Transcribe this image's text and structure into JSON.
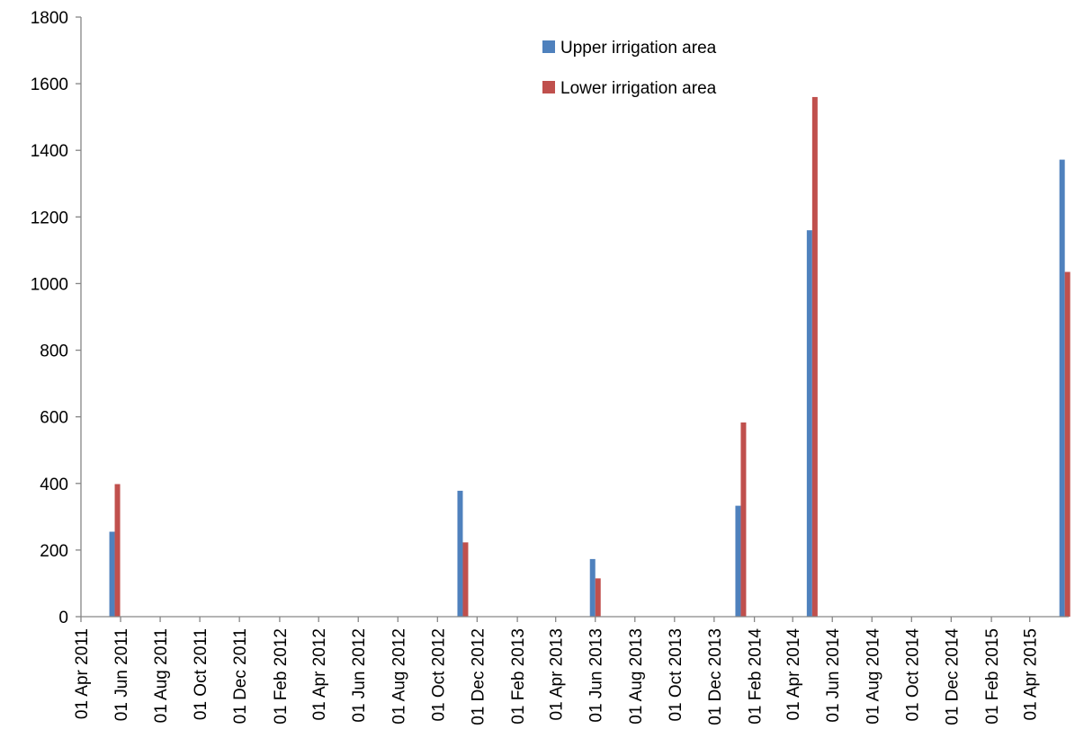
{
  "chart_data": {
    "type": "bar",
    "ylim": [
      0,
      1800
    ],
    "y_ticks": [
      0,
      200,
      400,
      600,
      800,
      1000,
      1200,
      1400,
      1600,
      1800
    ],
    "x_range": [
      "2011-04-01",
      "2015-05-31"
    ],
    "x_ticks": [
      "01 Apr 2011",
      "01 Jun 2011",
      "01 Aug 2011",
      "01 Oct 2011",
      "01 Dec 2011",
      "01 Feb 2012",
      "01 Apr 2012",
      "01 Jun 2012",
      "01 Aug 2012",
      "01 Oct 2012",
      "01 Dec 2012",
      "01 Feb 2013",
      "01 Apr 2013",
      "01 Jun 2013",
      "01 Aug 2013",
      "01 Oct 2013",
      "01 Dec 2013",
      "01 Feb 2014",
      "01 Apr 2014",
      "01 Jun 2014",
      "01 Aug 2014",
      "01 Oct 2014",
      "01 Dec 2014",
      "01 Feb 2015",
      "01 Apr 2015"
    ],
    "x": [
      "2011-05-23",
      "2012-11-09",
      "2013-06-01",
      "2014-01-11",
      "2014-05-01",
      "2015-05-25"
    ],
    "series": [
      {
        "name": "Upper irrigation area",
        "color": "#4F81BD",
        "values": [
          255,
          378,
          173,
          333,
          1160,
          1372
        ]
      },
      {
        "name": "Lower irrigation area",
        "color": "#C0504D",
        "values": [
          398,
          223,
          115,
          583,
          1560,
          1035
        ]
      }
    ],
    "grid": false,
    "legend_position": "top-right"
  }
}
